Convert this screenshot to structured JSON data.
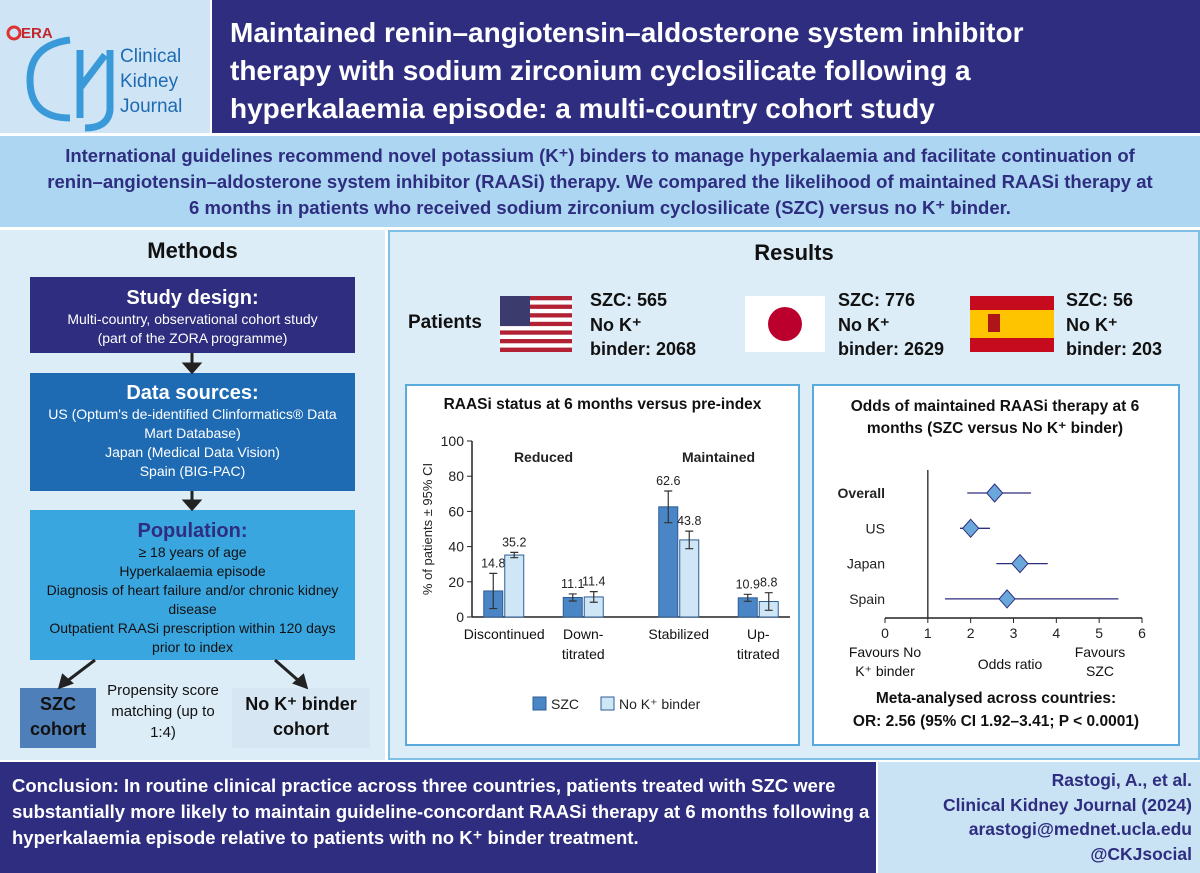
{
  "header": {
    "era": "ERA",
    "journal": "Clinical Kidney Journal",
    "title": "Maintained renin–angiotensin–aldosterone system inhibitor therapy with sodium zirconium cyclosilicate following a hyperkalaemia episode: a multi-country cohort study"
  },
  "intro": "International guidelines recommend novel potassium (K⁺) binders to manage hyperkalaemia and facilitate continuation of renin–angiotensin–aldosterone system inhibitor (RAASi) therapy. We compared the likelihood of maintained RAASi therapy at 6 months in patients who received sodium zirconium cyclosilicate (SZC) versus no K⁺ binder.",
  "methods": {
    "heading": "Methods",
    "study_design": {
      "title": "Study design:",
      "lines": [
        "Multi-country, observational cohort study",
        "(part of the ZORA programme)"
      ]
    },
    "data_sources": {
      "title": "Data sources:",
      "lines": [
        "US (Optum's de-identified Clinformatics® Data Mart Database)",
        "Japan (Medical Data Vision)",
        "Spain (BIG-PAC)"
      ]
    },
    "population": {
      "title": "Population:",
      "lines": [
        "≥ 18 years of age",
        "Hyperkalaemia episode",
        "Diagnosis of heart failure and/or chronic kidney disease",
        "Outpatient RAASi prescription within 120 days prior to index"
      ]
    },
    "szc_cohort": "SZC cohort",
    "matching": "Propensity score matching (up to 1:4)",
    "no_binder_cohort": "No K⁺ binder cohort"
  },
  "results": {
    "heading": "Results",
    "patients_label": "Patients",
    "countries": [
      {
        "szc_label": "SZC:",
        "szc": 565,
        "no_binder_label": "No K⁺ binder:",
        "no_binder": 2068
      },
      {
        "szc_label": "SZC:",
        "szc": 776,
        "no_binder_label": "No K⁺ binder:",
        "no_binder": 2629
      },
      {
        "szc_label": "SZC:",
        "szc": 56,
        "no_binder_label": "No K⁺ binder:",
        "no_binder": 203
      }
    ]
  },
  "chart_data": [
    {
      "type": "bar",
      "title": "RAASi status at 6 months versus pre-index",
      "y_label": "% of patients ± 95% CI",
      "categories": [
        "Discontinued",
        "Down-titrated",
        "Stabilized",
        "Up-titrated"
      ],
      "annotations": [
        "Reduced",
        "Maintained"
      ],
      "series": [
        {
          "name": "SZC",
          "color": "#4a86c5",
          "values": [
            14.8,
            11.1,
            62.6,
            10.9
          ],
          "errors": [
            10,
            2,
            9,
            2
          ]
        },
        {
          "name": "No K⁺ binder",
          "color": "#cfe6f7",
          "values": [
            35.2,
            11.4,
            43.8,
            8.8
          ],
          "errors": [
            1.5,
            3,
            5,
            5
          ]
        }
      ],
      "ylim": [
        0,
        100
      ],
      "yticks": [
        0,
        20,
        40,
        60,
        80,
        100
      ]
    },
    {
      "type": "forest",
      "title": "Odds of maintained RAASi therapy at 6 months (SZC versus No K⁺ binder)",
      "categories": [
        "Overall",
        "US",
        "Japan",
        "Spain"
      ],
      "values": [
        2.56,
        2.0,
        3.15,
        2.85
      ],
      "ci_lower": [
        1.92,
        1.75,
        2.6,
        1.4
      ],
      "ci_upper": [
        3.41,
        2.45,
        3.8,
        5.45
      ],
      "color": "#6aa8dc",
      "xlim": [
        0,
        6
      ],
      "xticks": [
        0,
        1,
        2,
        3,
        4,
        5,
        6
      ],
      "reference_x": 1,
      "x_label": "Odds ratio",
      "left_label": "Favours No K⁺ binder",
      "right_label": "Favours SZC",
      "footer": [
        "Meta-analysed across countries:",
        "OR: 2.56 (95% CI 1.92–3.41; P < 0.0001)"
      ]
    }
  ],
  "conclusion": "Conclusion: In routine clinical practice across three countries, patients treated with SZC were substantially more likely to maintain guideline-concordant RAASi therapy at 6 months following a hyperkalaemia episode relative to patients with no K⁺ binder treatment.",
  "citation": [
    "Rastogi, A., et al.",
    "Clinical Kidney Journal (2024)",
    "arastogi@mednet.ucla.edu",
    "@CKJsocial"
  ]
}
